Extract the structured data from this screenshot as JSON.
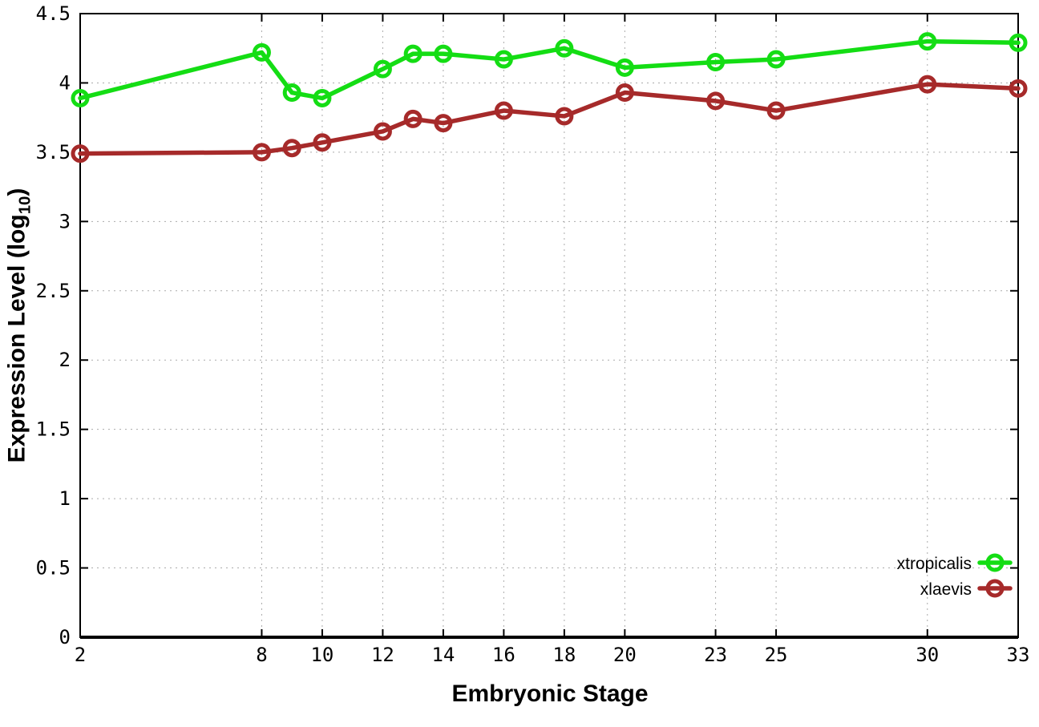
{
  "chart_data": {
    "type": "line",
    "title": "",
    "xlabel": "Embryonic Stage",
    "ylabel": "Expression Level (log10)",
    "ylabel_parts": {
      "main": "Expression Level (log",
      "sub": "10",
      "close": ")"
    },
    "x": [
      2,
      8,
      9,
      10,
      12,
      13,
      14,
      16,
      18,
      20,
      23,
      25,
      30,
      33
    ],
    "series": [
      {
        "name": "xtropicalis",
        "color": "#14dd14",
        "values": [
          3.89,
          4.22,
          3.93,
          3.89,
          4.1,
          4.21,
          4.21,
          4.17,
          4.25,
          4.11,
          4.15,
          4.17,
          4.3,
          4.29
        ]
      },
      {
        "name": "xlaevis",
        "color": "#a62a2a",
        "values": [
          3.49,
          3.5,
          3.53,
          3.57,
          3.65,
          3.74,
          3.71,
          3.8,
          3.76,
          3.93,
          3.87,
          3.8,
          3.99,
          3.96
        ]
      }
    ],
    "xlim": [
      2,
      33
    ],
    "ylim": [
      0,
      4.5
    ],
    "xtick_values": [
      2,
      8,
      10,
      12,
      14,
      16,
      18,
      20,
      23,
      25,
      30,
      33
    ],
    "xtick_labels": [
      "2",
      "8",
      "10",
      "12",
      "14",
      "16",
      "18",
      "20",
      "23",
      "25",
      "30",
      "33"
    ],
    "ytick_values": [
      0,
      0.5,
      1,
      1.5,
      2,
      2.5,
      3,
      3.5,
      4,
      4.5
    ],
    "ytick_labels": [
      "0",
      "0.5",
      "1",
      "1.5",
      "2",
      "2.5",
      "3",
      "3.5",
      "4",
      "4.5"
    ],
    "grid": true,
    "legend_position": "bottom-right",
    "colors": {
      "border": "#000000",
      "grid": "#aaaaaa",
      "text": "#000000",
      "background": "#ffffff"
    }
  }
}
